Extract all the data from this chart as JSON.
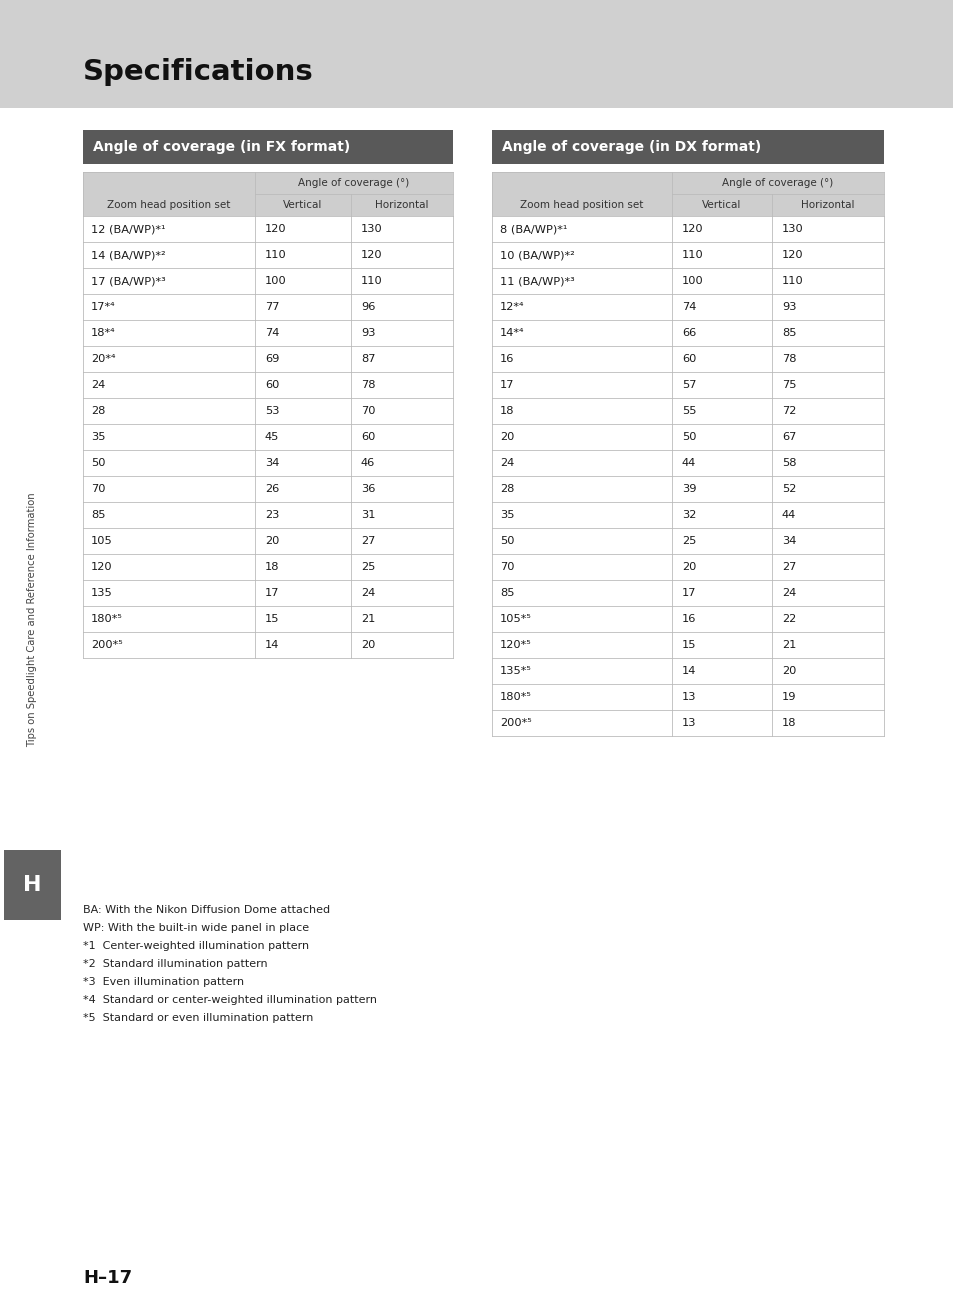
{
  "page_bg": "#d0d0d0",
  "content_bg": "#ffffff",
  "title": "Specifications",
  "sidebar_text": "Tips on Speedlight Care and Reference Information",
  "tab_label_bg": "#595959",
  "tab_label_color": "#ffffff",
  "table_header_bg": "#cecece",
  "table_border_color": "#bbbbbb",
  "page_number": "H–17",
  "h_label": "H",
  "h_label_bg": "#636363",
  "h_label_color": "#ffffff",
  "fx_title": "Angle of coverage (in FX format)",
  "dx_title": "Angle of coverage (in DX format)",
  "fx_rows": [
    [
      "12 (BA/WP)*¹",
      "120",
      "130"
    ],
    [
      "14 (BA/WP)*²",
      "110",
      "120"
    ],
    [
      "17 (BA/WP)*³",
      "100",
      "110"
    ],
    [
      "17*⁴",
      "77",
      "96"
    ],
    [
      "18*⁴",
      "74",
      "93"
    ],
    [
      "20*⁴",
      "69",
      "87"
    ],
    [
      "24",
      "60",
      "78"
    ],
    [
      "28",
      "53",
      "70"
    ],
    [
      "35",
      "45",
      "60"
    ],
    [
      "50",
      "34",
      "46"
    ],
    [
      "70",
      "26",
      "36"
    ],
    [
      "85",
      "23",
      "31"
    ],
    [
      "105",
      "20",
      "27"
    ],
    [
      "120",
      "18",
      "25"
    ],
    [
      "135",
      "17",
      "24"
    ],
    [
      "180*⁵",
      "15",
      "21"
    ],
    [
      "200*⁵",
      "14",
      "20"
    ]
  ],
  "dx_rows": [
    [
      "8 (BA/WP)*¹",
      "120",
      "130"
    ],
    [
      "10 (BA/WP)*²",
      "110",
      "120"
    ],
    [
      "11 (BA/WP)*³",
      "100",
      "110"
    ],
    [
      "12*⁴",
      "74",
      "93"
    ],
    [
      "14*⁴",
      "66",
      "85"
    ],
    [
      "16",
      "60",
      "78"
    ],
    [
      "17",
      "57",
      "75"
    ],
    [
      "18",
      "55",
      "72"
    ],
    [
      "20",
      "50",
      "67"
    ],
    [
      "24",
      "44",
      "58"
    ],
    [
      "28",
      "39",
      "52"
    ],
    [
      "35",
      "32",
      "44"
    ],
    [
      "50",
      "25",
      "34"
    ],
    [
      "70",
      "20",
      "27"
    ],
    [
      "85",
      "17",
      "24"
    ],
    [
      "105*⁵",
      "16",
      "22"
    ],
    [
      "120*⁵",
      "15",
      "21"
    ],
    [
      "135*⁵",
      "14",
      "20"
    ],
    [
      "180*⁵",
      "13",
      "19"
    ],
    [
      "200*⁵",
      "13",
      "18"
    ]
  ],
  "footnotes": [
    "BA: With the Nikon Diffusion Dome attached",
    "WP: With the built-in wide panel in place",
    "*1  Center-weighted illumination pattern",
    "*2  Standard illumination pattern",
    "*3  Even illumination pattern",
    "*4  Standard or center-weighted illumination pattern",
    "*5  Standard or even illumination pattern"
  ]
}
